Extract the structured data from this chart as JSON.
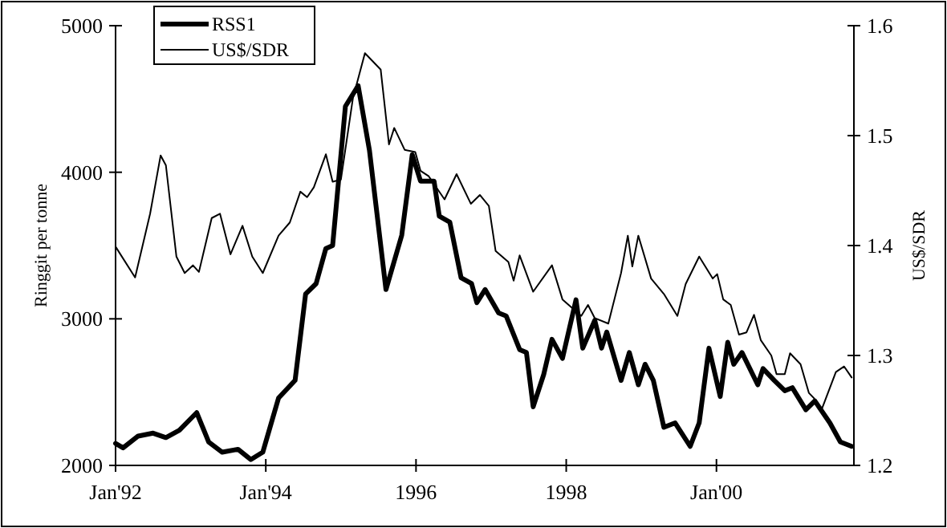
{
  "chart_data": {
    "type": "line",
    "ylabel": "Ringgit per tonne",
    "y2label": "US$/SDR",
    "legend": "top left",
    "grid": false,
    "marker": "none",
    "xlim": [
      1992,
      2001.83
    ],
    "xticks": [
      {
        "value": 1992,
        "label": "Jan'92"
      },
      {
        "value": 1994,
        "label": "Jan'94"
      },
      {
        "value": 1996,
        "label": "1996"
      },
      {
        "value": 1998,
        "label": "1998"
      },
      {
        "value": 2000,
        "label": "Jan'00"
      }
    ],
    "ylim": [
      2000,
      5000
    ],
    "yticks": [
      2000,
      3000,
      4000,
      5000
    ],
    "y2lim": [
      1.2,
      1.6
    ],
    "y2ticks": [
      1.2,
      1.3,
      1.4,
      1.5,
      1.6
    ],
    "series": [
      {
        "name": "RSS1",
        "color": "#000000",
        "x": [
          1992.0,
          1992.1,
          1992.3,
          1992.5,
          1992.67,
          1992.85,
          1993.08,
          1993.24,
          1993.42,
          1993.63,
          1993.8,
          1993.96,
          1994.17,
          1994.39,
          1994.53,
          1994.67,
          1994.8,
          1994.89,
          1995.06,
          1995.23,
          1995.38,
          1995.6,
          1995.81,
          1995.95,
          1996.06,
          1996.24,
          1996.31,
          1996.45,
          1996.6,
          1996.74,
          1996.81,
          1996.92,
          1997.1,
          1997.2,
          1997.38,
          1997.47,
          1997.56,
          1997.7,
          1997.81,
          1997.95,
          1998.13,
          1998.22,
          1998.38,
          1998.47,
          1998.54,
          1998.73,
          1998.84,
          1998.96,
          1999.05,
          1999.16,
          1999.3,
          1999.45,
          1999.65,
          1999.77,
          1999.9,
          2000.05,
          2000.15,
          2000.23,
          2000.34,
          2000.55,
          2000.62,
          2000.77,
          2000.91,
          2001.01,
          2001.19,
          2001.31,
          2001.51,
          2001.65,
          2001.8
        ],
        "values": [
          2150,
          2120,
          2200,
          2220,
          2190,
          2240,
          2360,
          2160,
          2090,
          2110,
          2040,
          2090,
          2460,
          2580,
          3170,
          3240,
          3480,
          3500,
          4450,
          4590,
          4150,
          3200,
          3570,
          4120,
          3940,
          3940,
          3700,
          3660,
          3280,
          3240,
          3110,
          3200,
          3040,
          3020,
          2790,
          2770,
          2400,
          2620,
          2860,
          2730,
          3130,
          2800,
          2990,
          2800,
          2910,
          2580,
          2770,
          2550,
          2690,
          2580,
          2260,
          2290,
          2130,
          2290,
          2800,
          2470,
          2840,
          2690,
          2770,
          2550,
          2660,
          2580,
          2510,
          2530,
          2380,
          2440,
          2290,
          2160,
          2130
        ]
      },
      {
        "name": "US$/SDR",
        "color": "#000000",
        "axis": "y2",
        "x": [
          1992.0,
          1992.26,
          1992.46,
          1992.6,
          1992.67,
          1992.81,
          1992.92,
          1993.03,
          1993.11,
          1993.28,
          1993.39,
          1993.53,
          1993.69,
          1993.82,
          1993.96,
          1994.17,
          1994.32,
          1994.46,
          1994.55,
          1994.64,
          1994.8,
          1994.89,
          1995.0,
          1995.16,
          1995.32,
          1995.53,
          1995.64,
          1995.71,
          1995.85,
          1995.99,
          1996.06,
          1996.17,
          1996.38,
          1996.54,
          1996.73,
          1996.85,
          1996.97,
          1997.06,
          1997.23,
          1997.3,
          1997.38,
          1997.56,
          1997.81,
          1997.95,
          1998.2,
          1998.29,
          1998.38,
          1998.56,
          1998.73,
          1998.82,
          1998.88,
          1998.96,
          1999.13,
          1999.3,
          1999.48,
          1999.59,
          1999.77,
          1999.95,
          2000.01,
          2000.09,
          2000.19,
          2000.3,
          2000.4,
          2000.5,
          2000.59,
          2000.73,
          2000.8,
          2000.91,
          2000.98,
          2001.12,
          2001.23,
          2001.3,
          2001.39,
          2001.44,
          2001.59,
          2001.7,
          2001.8
        ],
        "values": [
          1.399,
          1.371,
          1.429,
          1.482,
          1.473,
          1.39,
          1.375,
          1.382,
          1.376,
          1.425,
          1.429,
          1.392,
          1.418,
          1.39,
          1.375,
          1.409,
          1.421,
          1.449,
          1.444,
          1.453,
          1.483,
          1.458,
          1.46,
          1.534,
          1.575,
          1.56,
          1.492,
          1.507,
          1.487,
          1.485,
          1.468,
          1.463,
          1.442,
          1.465,
          1.438,
          1.446,
          1.436,
          1.395,
          1.385,
          1.368,
          1.391,
          1.358,
          1.382,
          1.351,
          1.336,
          1.346,
          1.334,
          1.329,
          1.375,
          1.409,
          1.381,
          1.409,
          1.37,
          1.356,
          1.336,
          1.365,
          1.39,
          1.37,
          1.374,
          1.351,
          1.346,
          1.319,
          1.321,
          1.337,
          1.314,
          1.3,
          1.283,
          1.283,
          1.302,
          1.292,
          1.266,
          1.261,
          1.249,
          1.258,
          1.285,
          1.29,
          1.28
        ]
      }
    ]
  }
}
